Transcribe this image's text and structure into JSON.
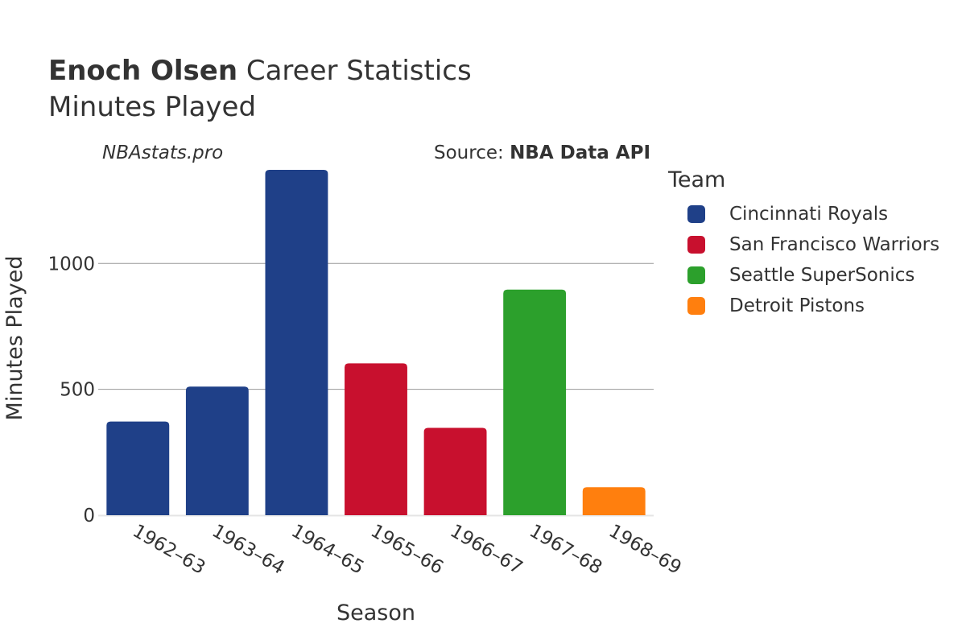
{
  "header": {
    "title_bold": "Enoch Olsen",
    "title_rest": " Career Statistics",
    "subtitle": "Minutes Played",
    "watermark": "NBAstats.pro",
    "source_prefix": "Source: ",
    "source_name": "NBA Data API"
  },
  "legend": {
    "title": "Team",
    "items": [
      {
        "label": "Cincinnati Royals",
        "color": "#1f4088"
      },
      {
        "label": "San Francisco Warriors",
        "color": "#c8102e"
      },
      {
        "label": "Seattle SuperSonics",
        "color": "#2ca02c"
      },
      {
        "label": "Detroit Pistons",
        "color": "#ff7f0e"
      }
    ]
  },
  "chart_data": {
    "type": "bar",
    "title": "Enoch Olsen Career Statistics",
    "subtitle": "Minutes Played",
    "xlabel": "Season",
    "ylabel": "Minutes Played",
    "ylim": [
      0,
      1375
    ],
    "yticks": [
      0,
      500,
      1000
    ],
    "grid": true,
    "legend_position": "right",
    "categories": [
      "1962–63",
      "1963–64",
      "1964–65",
      "1965–66",
      "1966–67",
      "1967–68",
      "1968–69"
    ],
    "values": [
      372,
      511,
      1372,
      603,
      347,
      896,
      111
    ],
    "teams": [
      "Cincinnati Royals",
      "Cincinnati Royals",
      "Cincinnati Royals",
      "San Francisco Warriors",
      "San Francisco Warriors",
      "Seattle SuperSonics",
      "Detroit Pistons"
    ],
    "colors": [
      "#1f4088",
      "#1f4088",
      "#1f4088",
      "#c8102e",
      "#c8102e",
      "#2ca02c",
      "#ff7f0e"
    ]
  }
}
